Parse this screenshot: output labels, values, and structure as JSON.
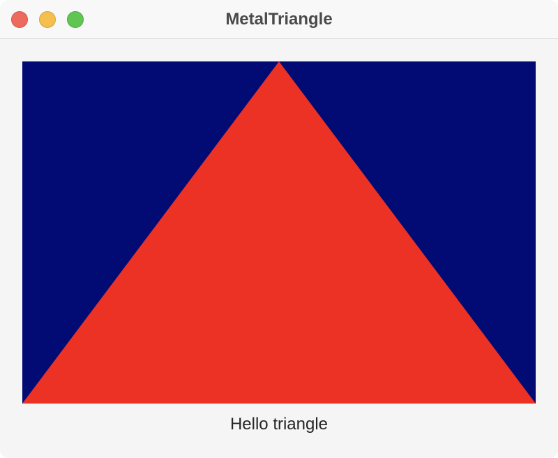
{
  "window": {
    "title": "MetalTriangle",
    "colors": {
      "background": "#f5f5f5",
      "titlebar": "#f8f8f8"
    },
    "controls": [
      {
        "name": "close",
        "color": "#ec6a5e",
        "border": "#d4564b"
      },
      {
        "name": "minimize",
        "color": "#f4bf4f",
        "border": "#d9a23a"
      },
      {
        "name": "zoom",
        "color": "#61c554",
        "border": "#4ea943"
      }
    ]
  },
  "render_view": {
    "clear_color": "#020b74",
    "triangle_color": "#ec3224"
  },
  "label": {
    "text": "Hello triangle"
  }
}
